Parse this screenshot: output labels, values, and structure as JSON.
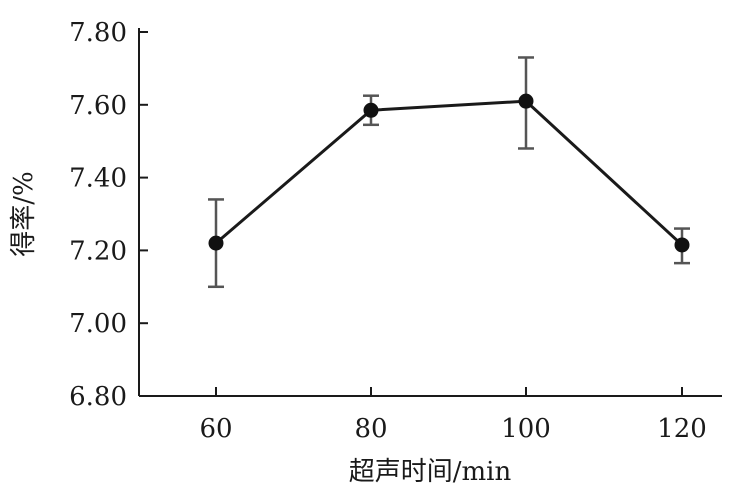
{
  "chart_data": {
    "type": "line",
    "title": "",
    "xlabel": "超声时间/min",
    "ylabel": "得率/%",
    "x": [
      60,
      80,
      100,
      120
    ],
    "x_tick_labels": [
      "60",
      "80",
      "100",
      "120"
    ],
    "y_tick_labels": [
      "6.80",
      "7.00",
      "7.20",
      "7.40",
      "7.60",
      "7.80"
    ],
    "y_ticks": [
      6.8,
      7.0,
      7.2,
      7.4,
      7.6,
      7.8
    ],
    "ylim": [
      6.8,
      7.8
    ],
    "grid": false,
    "legend": "none",
    "series": [
      {
        "values": [
          7.22,
          7.585,
          7.61,
          7.215
        ],
        "error_low": [
          7.1,
          7.545,
          7.48,
          7.165
        ],
        "error_high": [
          7.34,
          7.625,
          7.73,
          7.26
        ]
      }
    ],
    "colors": {
      "line": "#1a1a1a",
      "marker": "#111111",
      "error_bar": "#555555",
      "axis": "#1a1a1a"
    }
  }
}
